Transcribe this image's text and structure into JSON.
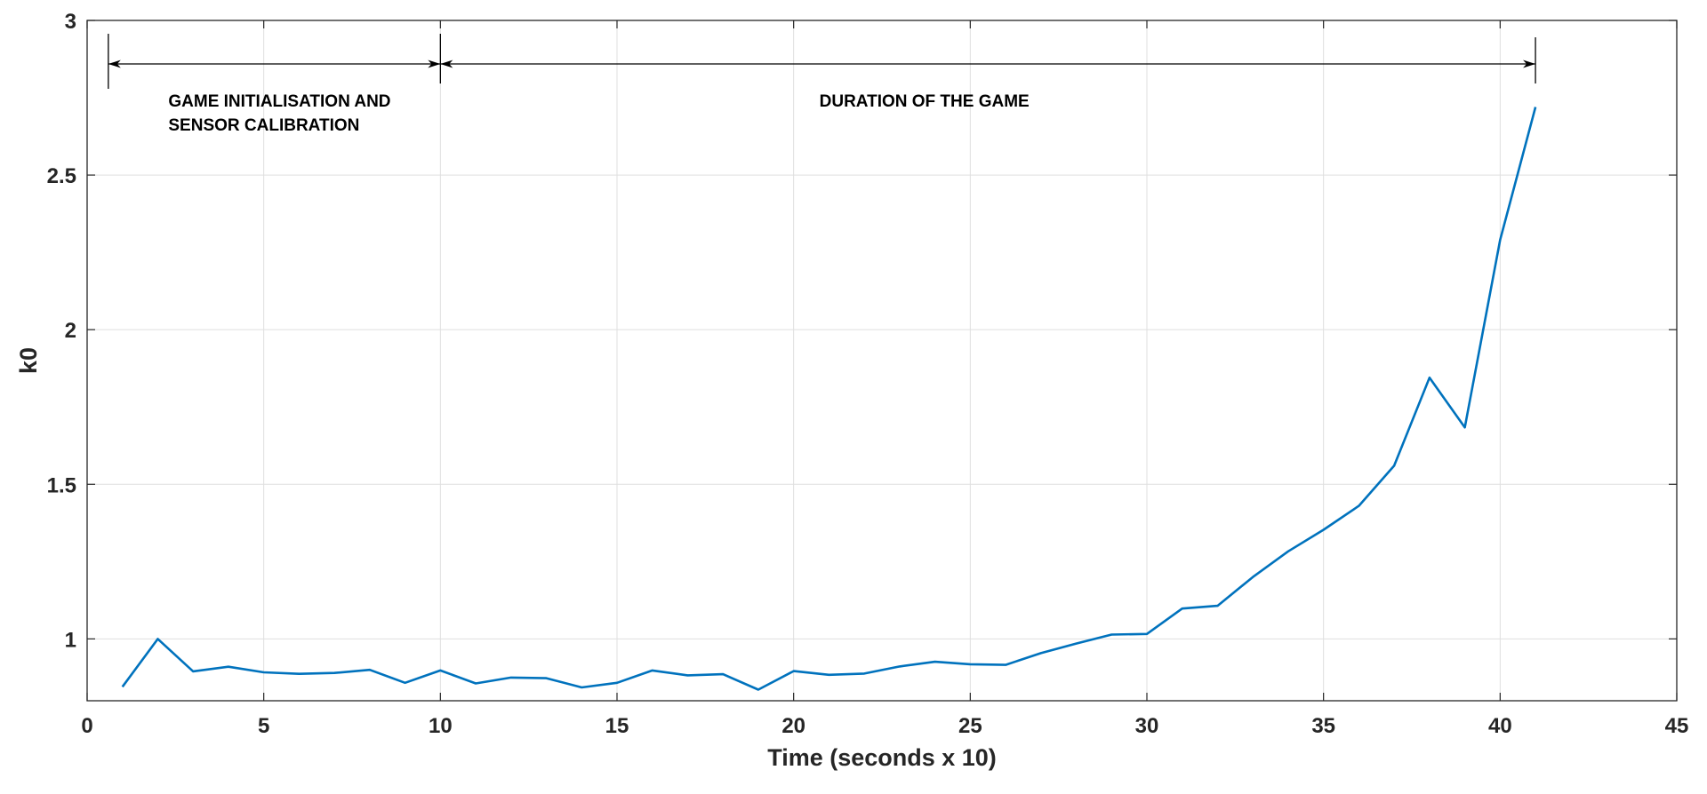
{
  "chart_data": {
    "type": "line",
    "title": "",
    "xlabel": "Time (seconds x 10)",
    "ylabel": "k0",
    "xlim": [
      0,
      45
    ],
    "ylim": [
      0.8,
      3
    ],
    "xticks": [
      0,
      5,
      10,
      15,
      20,
      25,
      30,
      35,
      40,
      45
    ],
    "yticks": [
      1,
      1.5,
      2,
      2.5,
      3
    ],
    "xtick_labels": [
      "0",
      "5",
      "10",
      "15",
      "20",
      "25",
      "30",
      "35",
      "40",
      "45"
    ],
    "ytick_labels": [
      "1",
      "1.5",
      "2",
      "2.5",
      "3"
    ],
    "grid": true,
    "series": [
      {
        "color": "#0072BD",
        "x": [
          1,
          2,
          3,
          4,
          5,
          6,
          7,
          8,
          9,
          10,
          11,
          12,
          13,
          14,
          15,
          16,
          17,
          18,
          19,
          20,
          21,
          22,
          23,
          24,
          25,
          26,
          27,
          28,
          29,
          30,
          31,
          32,
          33,
          34,
          35,
          36,
          37,
          38,
          39,
          40,
          41
        ],
        "y": [
          0.845,
          1.0,
          0.895,
          0.91,
          0.892,
          0.887,
          0.89,
          0.9,
          0.858,
          0.898,
          0.856,
          0.875,
          0.873,
          0.843,
          0.858,
          0.898,
          0.882,
          0.886,
          0.836,
          0.896,
          0.884,
          0.888,
          0.911,
          0.926,
          0.918,
          0.916,
          0.954,
          0.985,
          1.014,
          1.016,
          1.098,
          1.107,
          1.2,
          1.283,
          1.353,
          1.43,
          1.56,
          1.845,
          1.684,
          2.29,
          2.72
        ]
      }
    ],
    "annotations": [
      {
        "id": "init",
        "lines": [
          "GAME INITIALISATION AND",
          "SENSOR CALIBRATION"
        ],
        "x_start": 0.6,
        "x_end": 10
      },
      {
        "id": "game",
        "lines": [
          "DURATION OF THE GAME"
        ],
        "x_start": 10,
        "x_end": 41
      }
    ]
  }
}
